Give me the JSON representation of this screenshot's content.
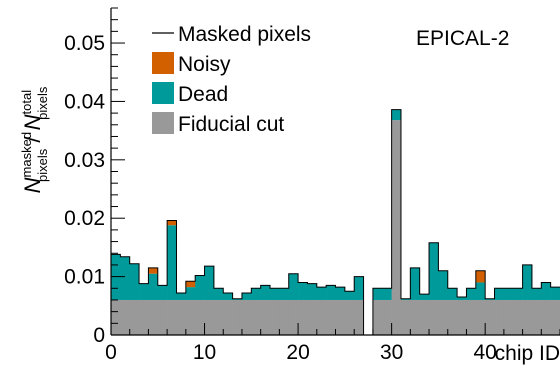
{
  "chart_data": {
    "type": "bar",
    "stacked": true,
    "title": "",
    "annotation": "EPICAL-2",
    "xlabel": "chip ID",
    "ylabel": {
      "base": "N",
      "num_sup": "masked",
      "num_sub": "pixels",
      "sep": " / ",
      "den_sup": "total",
      "den_sub": "pixels"
    },
    "xlim": [
      0,
      48
    ],
    "ylim": [
      0,
      0.056
    ],
    "x_ticks": [
      0,
      10,
      20,
      30,
      40
    ],
    "x_tick_labels": [
      "0",
      "10",
      "20",
      "30",
      "40"
    ],
    "y_ticks": [
      0,
      0.01,
      0.02,
      0.03,
      0.04,
      0.05
    ],
    "y_tick_labels": [
      "0",
      "0.01",
      "0.02",
      "0.03",
      "0.04",
      "0.05"
    ],
    "legend_placement": "top-left",
    "grid": false,
    "colors": {
      "fiducial": "#999999",
      "dead": "#009a9a",
      "noisy": "#d26000",
      "line": "#000000"
    },
    "legend": [
      {
        "key": "line",
        "label": "Masked pixels"
      },
      {
        "key": "noisy",
        "label": "Noisy"
      },
      {
        "key": "dead",
        "label": "Dead"
      },
      {
        "key": "fiducial",
        "label": "Fiducial cut"
      }
    ],
    "series": [
      {
        "name": "Fiducial cut",
        "key": "fiducial",
        "values": [
          0.006,
          0.006,
          0.006,
          0.006,
          0.006,
          0.006,
          0.006,
          0.006,
          0.006,
          0.006,
          0.006,
          0.006,
          0.006,
          0.006,
          0.006,
          0.006,
          0.006,
          0.006,
          0.006,
          0.006,
          0.006,
          0.006,
          0.006,
          0.006,
          0.006,
          0.006,
          0.006,
          0.0,
          0.006,
          0.006,
          0.0368,
          0.006,
          0.006,
          0.006,
          0.006,
          0.006,
          0.006,
          0.006,
          0.006,
          0.006,
          0.006,
          0.006,
          0.006,
          0.006,
          0.006,
          0.006,
          0.006,
          0.006
        ]
      },
      {
        "name": "Dead",
        "key": "dead",
        "values": [
          0.0078,
          0.0074,
          0.0062,
          0.0028,
          0.0045,
          0.0025,
          0.0128,
          0.0012,
          0.0022,
          0.0042,
          0.0058,
          0.002,
          0.0012,
          0.0002,
          0.0012,
          0.002,
          0.0025,
          0.002,
          0.002,
          0.0045,
          0.003,
          0.0028,
          0.0022,
          0.0025,
          0.0022,
          0.0015,
          0.004,
          0.0,
          0.002,
          0.002,
          0.0018,
          0.0002,
          0.0055,
          0.001,
          0.0098,
          0.005,
          0.002,
          0.0005,
          0.002,
          0.003,
          0.0002,
          0.002,
          0.002,
          0.002,
          0.006,
          0.002,
          0.003,
          0.0022
        ]
      },
      {
        "name": "Noisy",
        "key": "noisy",
        "values": [
          0,
          0,
          0,
          0,
          0.001,
          0,
          0.0008,
          0,
          0.001,
          0,
          0,
          0,
          0,
          0,
          0,
          0,
          0,
          0,
          0,
          0,
          0,
          0,
          0,
          0,
          0,
          0,
          0,
          0,
          0,
          0,
          0,
          0,
          0,
          0,
          0,
          0,
          0,
          0,
          0,
          0.002,
          0,
          0,
          0,
          0,
          0,
          0,
          0,
          0
        ]
      }
    ]
  }
}
